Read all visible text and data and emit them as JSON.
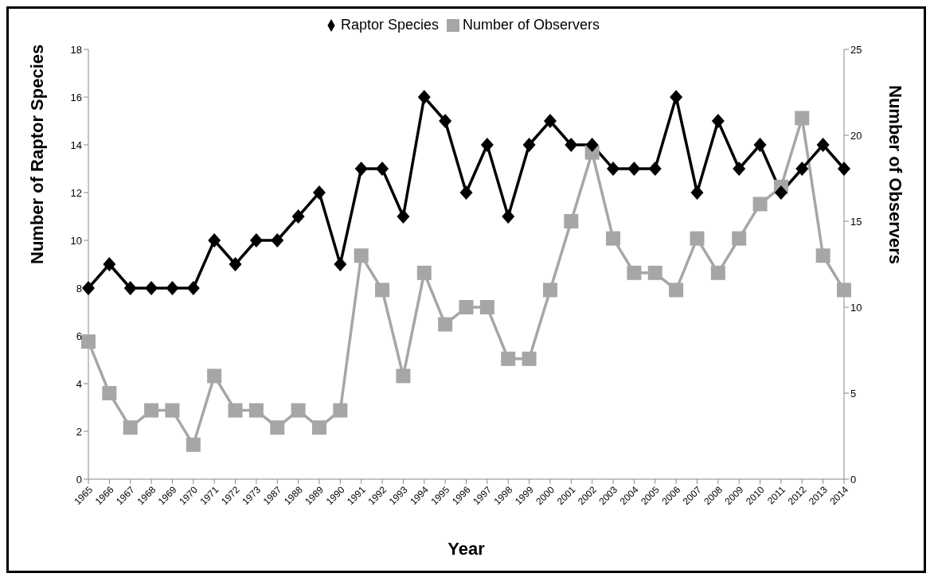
{
  "chart_data": {
    "type": "line",
    "xlabel": "Year",
    "ylabel": "Number of Raptor Species",
    "y2label": "Number of Observers",
    "categories": [
      "1965",
      "1966",
      "1967",
      "1968",
      "1969",
      "1970",
      "1971",
      "1972",
      "1973",
      "1987",
      "1988",
      "1989",
      "1990",
      "1991",
      "1992",
      "1993",
      "1994",
      "1995",
      "1996",
      "1997",
      "1998",
      "1999",
      "2000",
      "2001",
      "2002",
      "2003",
      "2004",
      "2005",
      "2006",
      "2007",
      "2008",
      "2009",
      "2010",
      "2011",
      "2012",
      "2013",
      "2014"
    ],
    "series": [
      {
        "name": "Raptor Species",
        "color": "#000000",
        "marker": "diamond",
        "values": [
          8,
          9,
          8,
          8,
          8,
          8,
          10,
          9,
          10,
          10,
          11,
          12,
          9,
          13,
          13,
          11,
          16,
          15,
          12,
          14,
          11,
          14,
          15,
          14,
          14,
          13,
          13,
          13,
          16,
          12,
          15,
          13,
          14,
          12,
          13,
          14,
          13
        ]
      },
      {
        "name": "Number of Observers",
        "color": "#a6a6a6",
        "marker": "square",
        "axis": "y2",
        "values": [
          8,
          5,
          3,
          4,
          4,
          2,
          6,
          4,
          4,
          3,
          4,
          3,
          4,
          13,
          11,
          6,
          12,
          9,
          10,
          10,
          7,
          7,
          11,
          15,
          19,
          14,
          12,
          12,
          11,
          14,
          12,
          14,
          16,
          17,
          21,
          13,
          11
        ]
      }
    ],
    "ylim": [
      0,
      18
    ],
    "yticks": [
      0,
      2,
      4,
      6,
      8,
      10,
      12,
      14,
      16,
      18
    ],
    "y2lim": [
      0,
      25
    ],
    "y2ticks": [
      0,
      5,
      10,
      15,
      20,
      25
    ],
    "grid": false,
    "legend": "top"
  }
}
